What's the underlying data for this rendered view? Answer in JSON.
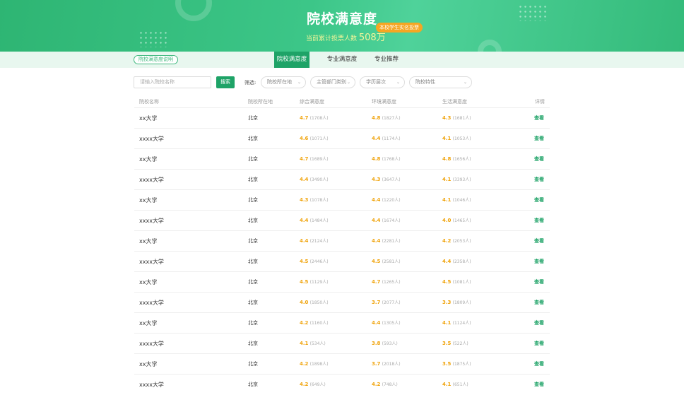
{
  "banner": {
    "title": "院校满意度",
    "votes_label": "当前累计投票人数",
    "votes_value": "508万",
    "badge": "本校学生实名投票"
  },
  "tabs": {
    "explain": "院校满意度说明",
    "items": [
      "院校满意度",
      "专业满意度",
      "专业推荐"
    ],
    "active": 0
  },
  "filters": {
    "search_placeholder": "请输入院校名称",
    "search_button": "搜索",
    "label": "筛选:",
    "selects": [
      "院校所在地",
      "主管部门类别",
      "学历层次",
      "院校特性"
    ]
  },
  "table": {
    "headers": [
      "院校名称",
      "院校所在地",
      "综合满意度",
      "环境满意度",
      "生活满意度",
      "详情"
    ],
    "rows": [
      [
        "xx大学",
        "北京",
        "4.7",
        "(1708人)",
        "4.8",
        "(1827人)",
        "4.3",
        "(1681人)",
        "查看"
      ],
      [
        "xxxx大学",
        "北京",
        "4.6",
        "(1071人)",
        "4.4",
        "(1174人)",
        "4.1",
        "(1053人)",
        "查看"
      ],
      [
        "xx大学",
        "北京",
        "4.7",
        "(1689人)",
        "4.8",
        "(1768人)",
        "4.8",
        "(1656人)",
        "查看"
      ],
      [
        "xxxx大学",
        "北京",
        "4.4",
        "(3490人)",
        "4.3",
        "(3647人)",
        "4.1",
        "(3393人)",
        "查看"
      ],
      [
        "xx大学",
        "北京",
        "4.3",
        "(1078人)",
        "4.4",
        "(1220人)",
        "4.1",
        "(1046人)",
        "查看"
      ],
      [
        "xxxx大学",
        "北京",
        "4.4",
        "(1484人)",
        "4.4",
        "(1674人)",
        "4.0",
        "(1465人)",
        "查看"
      ],
      [
        "xx大学",
        "北京",
        "4.4",
        "(2124人)",
        "4.4",
        "(2281人)",
        "4.2",
        "(2053人)",
        "查看"
      ],
      [
        "xxxx大学",
        "北京",
        "4.5",
        "(2446人)",
        "4.5",
        "(2581人)",
        "4.4",
        "(2358人)",
        "查看"
      ],
      [
        "xx大学",
        "北京",
        "4.5",
        "(1129人)",
        "4.7",
        "(1265人)",
        "4.5",
        "(1081人)",
        "查看"
      ],
      [
        "xxxx大学",
        "北京",
        "4.0",
        "(1850人)",
        "3.7",
        "(2077人)",
        "3.3",
        "(1809人)",
        "查看"
      ],
      [
        "xx大学",
        "北京",
        "4.2",
        "(1160人)",
        "4.4",
        "(1305人)",
        "4.1",
        "(1124人)",
        "查看"
      ],
      [
        "xxxx大学",
        "北京",
        "4.1",
        "(534人)",
        "3.8",
        "(593人)",
        "3.5",
        "(522人)",
        "查看"
      ],
      [
        "xx大学",
        "北京",
        "4.2",
        "(1898人)",
        "3.7",
        "(2018人)",
        "3.5",
        "(1875人)",
        "查看"
      ],
      [
        "xxxx大学",
        "北京",
        "4.2",
        "(649人)",
        "4.2",
        "(748人)",
        "4.1",
        "(651人)",
        "查看"
      ]
    ]
  },
  "colors": {
    "brand": "#1ea367",
    "score": "#f0a30a",
    "badge": "#f6a623"
  }
}
